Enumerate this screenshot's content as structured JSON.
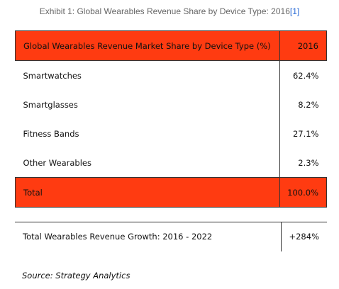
{
  "caption": {
    "text": "Exhibit 1: Global Wearables Revenue Share by Device Type: 2016",
    "reference": "[1]"
  },
  "table": {
    "header": {
      "label": "Global Wearables Revenue Market Share by Device Type (%)",
      "value": "2016"
    },
    "rows": [
      {
        "label": "Smartwatches",
        "value": "62.4%"
      },
      {
        "label": "Smartglasses",
        "value": "8.2%"
      },
      {
        "label": "Fitness Bands",
        "value": "27.1%"
      },
      {
        "label": "Other Wearables",
        "value": "2.3%"
      }
    ],
    "total": {
      "label": "Total",
      "value": "100.0%"
    }
  },
  "growth": {
    "label": "Total Wearables Revenue Growth: 2016 - 2022",
    "value": "+284%"
  },
  "source": "Source: Strategy Analytics",
  "colors": {
    "header_fill": "#ff3b11",
    "caption_text": "#666666",
    "link": "#2a6bd6"
  }
}
